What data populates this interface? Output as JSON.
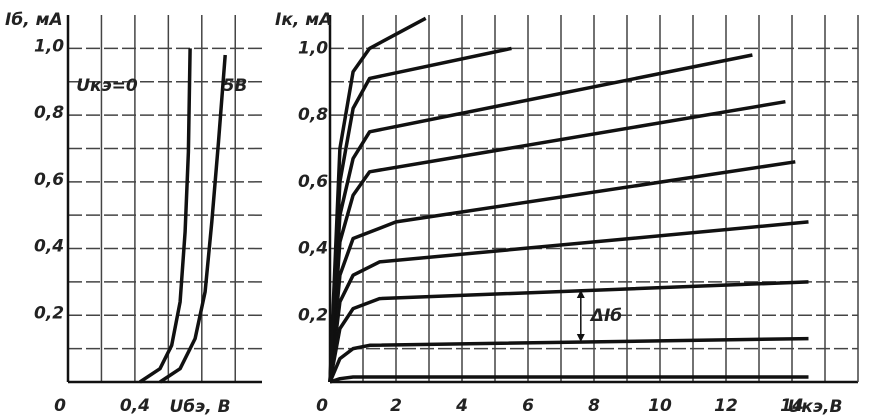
{
  "chart_data": [
    {
      "type": "line",
      "y_label": "Iб, мА",
      "x_label": "Uбэ, В",
      "xlim": [
        0,
        1.16
      ],
      "ylim": [
        0,
        1.1
      ],
      "xticks": [
        0,
        {
          "value": 0.4,
          "label": "0,4"
        }
      ],
      "xgrid": [
        0.2,
        0.6,
        0.8,
        1.0
      ],
      "yticks": [
        {
          "value": 0.2,
          "label": "0,2"
        },
        {
          "value": 0.4,
          "label": "0,4"
        },
        {
          "value": 0.6,
          "label": "0,6"
        },
        {
          "value": 0.8,
          "label": "0,8"
        },
        {
          "value": 1.0,
          "label": "1,0"
        }
      ],
      "ygrid": [
        0.1,
        0.3,
        0.5,
        0.7,
        0.9
      ],
      "series": [
        {
          "name": "Uкэ=0",
          "color": "#111111",
          "x": [
            0.43,
            0.55,
            0.62,
            0.67,
            0.7,
            0.72,
            0.73
          ],
          "values": [
            0,
            0.04,
            0.11,
            0.24,
            0.45,
            0.69,
            1.0
          ]
        },
        {
          "name": "5В",
          "color": "#111111",
          "x": [
            0.55,
            0.67,
            0.76,
            0.82,
            0.86,
            0.9,
            0.94
          ],
          "values": [
            0,
            0.04,
            0.13,
            0.27,
            0.48,
            0.72,
            0.98
          ]
        }
      ]
    },
    {
      "type": "line",
      "y_label": "Iк, мА",
      "x_label": "Uкэ,В",
      "xlim": [
        0,
        16
      ],
      "ylim": [
        0,
        1.1
      ],
      "xticks": [
        0,
        2,
        4,
        6,
        8,
        10,
        12,
        14
      ],
      "xgrid": [
        1,
        3,
        5,
        7,
        9,
        11,
        13,
        15
      ],
      "yticks": [
        {
          "value": 0.2,
          "label": "0,2"
        },
        {
          "value": 0.4,
          "label": "0,4"
        },
        {
          "value": 0.6,
          "label": "0,6"
        },
        {
          "value": 0.8,
          "label": "0,8"
        },
        {
          "value": 1.0,
          "label": "1,0"
        }
      ],
      "ygrid": [
        0.1,
        0.3,
        0.5,
        0.7,
        0.9
      ],
      "annotation": "ΔIб",
      "series": [
        {
          "color": "#111111",
          "x": [
            0,
            0.3,
            0.7,
            1.2,
            14.5
          ],
          "values": [
            0,
            0.01,
            0.015,
            0.015,
            0.015
          ]
        },
        {
          "color": "#111111",
          "x": [
            0,
            0.3,
            0.7,
            1.2,
            14.5
          ],
          "values": [
            0,
            0.07,
            0.1,
            0.11,
            0.13
          ]
        },
        {
          "color": "#111111",
          "x": [
            0,
            0.3,
            0.7,
            1.5,
            14.5
          ],
          "values": [
            0,
            0.16,
            0.22,
            0.25,
            0.3
          ]
        },
        {
          "color": "#111111",
          "x": [
            0,
            0.3,
            0.7,
            1.5,
            14.5
          ],
          "values": [
            0,
            0.24,
            0.32,
            0.36,
            0.48
          ]
        },
        {
          "color": "#111111",
          "x": [
            0,
            0.3,
            0.7,
            2,
            14.1
          ],
          "values": [
            0,
            0.32,
            0.43,
            0.48,
            0.66
          ]
        },
        {
          "color": "#111111",
          "x": [
            0,
            0.3,
            0.7,
            1.2,
            13.8
          ],
          "values": [
            0,
            0.42,
            0.56,
            0.63,
            0.84
          ]
        },
        {
          "color": "#111111",
          "x": [
            0,
            0.3,
            0.7,
            1.2,
            12.8
          ],
          "values": [
            0,
            0.5,
            0.67,
            0.75,
            0.98
          ]
        },
        {
          "color": "#111111",
          "x": [
            0,
            0.3,
            0.7,
            1.2,
            5.5
          ],
          "values": [
            0,
            0.6,
            0.82,
            0.91,
            1.0
          ]
        },
        {
          "color": "#111111",
          "x": [
            0,
            0.3,
            0.7,
            1.2,
            2.9
          ],
          "values": [
            0,
            0.7,
            0.93,
            1.0,
            1.09
          ]
        }
      ]
    }
  ]
}
